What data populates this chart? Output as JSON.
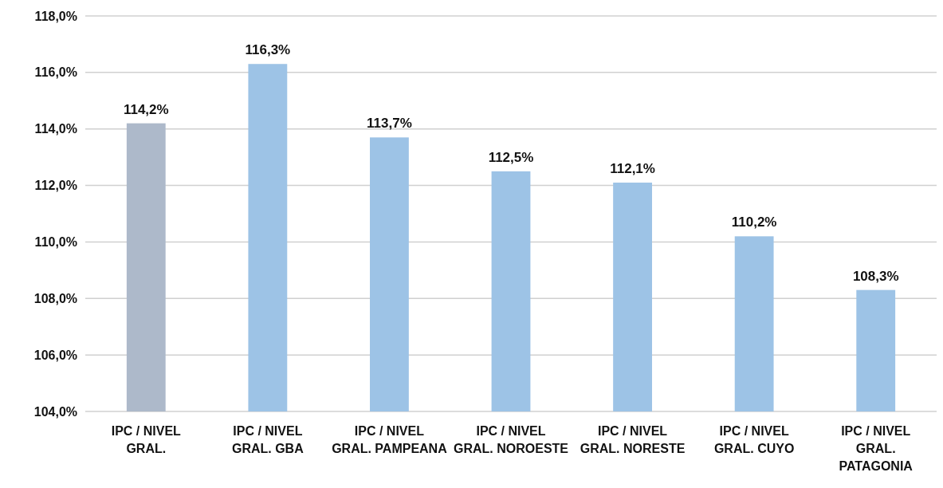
{
  "chart_data": {
    "type": "bar",
    "categories": [
      "IPC / NIVEL GRAL.",
      "IPC / NIVEL GRAL. GBA",
      "IPC / NIVEL GRAL. PAMPEANA",
      "IPC / NIVEL GRAL. NOROESTE",
      "IPC / NIVEL GRAL. NORESTE",
      "IPC / NIVEL GRAL. CUYO",
      "IPC / NIVEL GRAL. PATAGONIA"
    ],
    "values": [
      114.2,
      116.3,
      113.7,
      112.5,
      112.1,
      110.2,
      108.3
    ],
    "colors": [
      "#adb9ca",
      "#9dc3e6",
      "#9dc3e6",
      "#9dc3e6",
      "#9dc3e6",
      "#9dc3e6",
      "#9dc3e6"
    ],
    "value_labels": [
      "114,2%",
      "116,3%",
      "113,7%",
      "112,5%",
      "112,1%",
      "110,2%",
      "108,3%"
    ],
    "ylim": [
      104,
      118
    ],
    "yticks": [
      {
        "value": 104,
        "label": "104,0%"
      },
      {
        "value": 106,
        "label": "106,0%"
      },
      {
        "value": 108,
        "label": "108,0%"
      },
      {
        "value": 110,
        "label": "110,0%"
      },
      {
        "value": 112,
        "label": "112,0%"
      },
      {
        "value": 114,
        "label": "114,0%"
      },
      {
        "value": 116,
        "label": "116,0%"
      },
      {
        "value": 118,
        "label": "118,0%"
      }
    ],
    "grid": "y"
  }
}
